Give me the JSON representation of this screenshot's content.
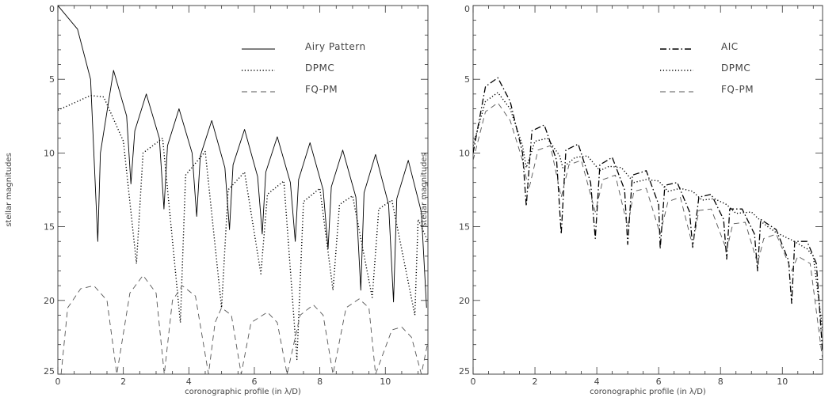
{
  "chart_data": [
    {
      "type": "line",
      "xlabel": "coronographic profile (in λ/D)",
      "ylabel": "stellar magnitudes",
      "xlim": [
        0,
        11.3
      ],
      "ylim": [
        25,
        0
      ],
      "x_ticks": [
        "0",
        "2",
        "4",
        "6",
        "8",
        "10"
      ],
      "y_ticks": [
        "0",
        "5",
        "10",
        "15",
        "20",
        "25"
      ],
      "legend_position": "top-right",
      "series": [
        {
          "name": "Airy Pattern",
          "style": "solid",
          "color": "#000000",
          "x": [
            0,
            0.6,
            1.0,
            1.22,
            1.3,
            1.7,
            2.1,
            2.23,
            2.35,
            2.7,
            3.1,
            3.24,
            3.35,
            3.7,
            4.1,
            4.24,
            4.35,
            4.7,
            5.1,
            5.24,
            5.35,
            5.7,
            6.1,
            6.24,
            6.35,
            6.7,
            7.1,
            7.25,
            7.35,
            7.7,
            8.1,
            8.25,
            8.35,
            8.7,
            9.1,
            9.25,
            9.35,
            9.7,
            10.1,
            10.25,
            10.35,
            10.7,
            11.1,
            11.26
          ],
          "y": [
            0,
            1.6,
            5,
            16,
            10,
            4.4,
            7.5,
            12.1,
            8.5,
            6.0,
            9,
            13.8,
            9.5,
            7.0,
            10,
            14.3,
            10.2,
            7.8,
            11,
            15.2,
            10.8,
            8.4,
            11.6,
            15.5,
            11.3,
            8.9,
            12,
            16,
            11.8,
            9.3,
            12.5,
            16.5,
            12.3,
            9.8,
            13,
            19.3,
            12.7,
            10.1,
            13.5,
            20.1,
            13.1,
            10.5,
            14,
            20.5
          ]
        },
        {
          "name": "DPMC",
          "style": "dotted",
          "color": "#000000",
          "x": [
            0,
            0.5,
            1.0,
            1.4,
            2.0,
            2.4,
            2.6,
            3.2,
            3.74,
            3.9,
            4.5,
            5.0,
            5.2,
            5.7,
            6.2,
            6.4,
            6.9,
            7.3,
            7.5,
            8.0,
            8.4,
            8.6,
            9.0,
            9.6,
            9.8,
            10.2,
            10.9,
            11.0,
            11.3
          ],
          "y": [
            7.1,
            6.6,
            6.1,
            6.2,
            9.2,
            17.5,
            10,
            9.0,
            21.5,
            11.5,
            9.9,
            20.5,
            12.5,
            11.3,
            18.2,
            12.8,
            11.9,
            24,
            13.3,
            12.4,
            19.3,
            13.5,
            12.9,
            19.8,
            13.8,
            13.2,
            21,
            14.5,
            16
          ]
        },
        {
          "name": "FQ-PM",
          "style": "dashed",
          "color": "#555555",
          "x": [
            0.1,
            0.3,
            0.7,
            1.1,
            1.5,
            1.8,
            2.2,
            2.6,
            3.0,
            3.25,
            3.5,
            3.8,
            4.2,
            4.6,
            4.8,
            5.0,
            5.3,
            5.6,
            5.9,
            6.4,
            6.7,
            7.0,
            7.4,
            7.8,
            8.1,
            8.4,
            8.8,
            9.2,
            9.5,
            9.7,
            10.2,
            10.5,
            10.8,
            11.1,
            11.3
          ],
          "y": [
            25,
            20.5,
            19.2,
            19.0,
            20,
            25,
            19.5,
            18.3,
            19.5,
            25,
            20,
            19.0,
            19.7,
            25,
            21.5,
            20.5,
            21,
            25,
            21.5,
            20.8,
            21.5,
            25,
            21,
            20.3,
            21,
            25,
            20.5,
            19.9,
            20.5,
            25,
            22,
            21.8,
            22.5,
            25,
            22.8
          ]
        }
      ]
    },
    {
      "type": "line",
      "xlabel": "coronographic profile (in λ/D)",
      "ylabel": "stellar magnitudes",
      "xlim": [
        0,
        11.3
      ],
      "ylim": [
        25,
        0
      ],
      "x_ticks": [
        "0",
        "2",
        "4",
        "6",
        "8",
        "10"
      ],
      "y_ticks": [
        "0",
        "5",
        "10",
        "15",
        "20",
        "25"
      ],
      "legend_position": "top-right",
      "series": [
        {
          "name": "AIC",
          "style": "dashdot",
          "color": "#000000",
          "x": [
            0,
            0.4,
            0.8,
            1.2,
            1.6,
            1.72,
            1.9,
            2.3,
            2.7,
            2.85,
            3.0,
            3.4,
            3.8,
            3.95,
            4.1,
            4.5,
            4.9,
            5.0,
            5.15,
            5.6,
            6.0,
            6.05,
            6.2,
            6.6,
            7.0,
            7.1,
            7.3,
            7.7,
            8.1,
            8.2,
            8.3,
            8.7,
            9.1,
            9.2,
            9.3,
            9.8,
            10.2,
            10.3,
            10.4,
            10.8,
            11.1,
            11.3
          ],
          "y": [
            10,
            5.5,
            4.9,
            6.5,
            10,
            13.6,
            8.5,
            8.1,
            10.5,
            15.5,
            9.8,
            9.4,
            12,
            15.8,
            10.8,
            10.3,
            12.5,
            16.2,
            11.5,
            11.2,
            13.5,
            16.5,
            12.2,
            12.0,
            14,
            16.4,
            13,
            12.8,
            14.5,
            17.2,
            13.8,
            13.8,
            15.5,
            18,
            14.5,
            15.2,
            17.3,
            20.2,
            16,
            16.0,
            17.5,
            23.5
          ]
        },
        {
          "name": "DPMC",
          "style": "dotted",
          "color": "#000000",
          "x": [
            0,
            0.4,
            0.8,
            1.2,
            1.6,
            1.72,
            2.0,
            2.4,
            2.8,
            2.9,
            3.3,
            3.7,
            4.1,
            4.4,
            4.8,
            5.2,
            5.6,
            6.0,
            6.3,
            6.7,
            7.1,
            7.4,
            7.8,
            8.2,
            8.5,
            9.0,
            9.4,
            9.8,
            10.3,
            10.8,
            11.0,
            11.3
          ],
          "y": [
            9.5,
            6.5,
            5.9,
            7,
            9.5,
            11,
            9.2,
            9.0,
            10.2,
            11,
            10.3,
            10.2,
            11.2,
            10.9,
            11.0,
            12.0,
            11.8,
            11.9,
            12.6,
            12.4,
            12.6,
            13.2,
            13.1,
            13.5,
            14.1,
            14.0,
            14.8,
            15.4,
            15.9,
            16.5,
            17,
            22
          ]
        },
        {
          "name": "FQ-PM",
          "style": "dashed",
          "color": "#555555",
          "x": [
            0,
            0.4,
            0.8,
            1.2,
            1.6,
            1.8,
            2.1,
            2.5,
            2.85,
            3.1,
            3.5,
            3.95,
            4.2,
            4.6,
            5.0,
            5.2,
            5.6,
            6.05,
            6.3,
            6.7,
            7.1,
            7.3,
            7.7,
            8.2,
            8.4,
            8.8,
            9.2,
            9.4,
            9.8,
            10.3,
            10.5,
            10.9,
            11.3
          ],
          "y": [
            10.5,
            7.2,
            6.6,
            7.8,
            10.5,
            12.5,
            9.8,
            9.5,
            13,
            10.8,
            10.5,
            14,
            11.8,
            11.5,
            15,
            12.6,
            12.4,
            15.5,
            13.3,
            13.0,
            16.3,
            13.9,
            13.8,
            16.6,
            14.8,
            14.7,
            17.5,
            15.8,
            15.5,
            18,
            17.0,
            17.5,
            24
          ]
        }
      ]
    }
  ]
}
